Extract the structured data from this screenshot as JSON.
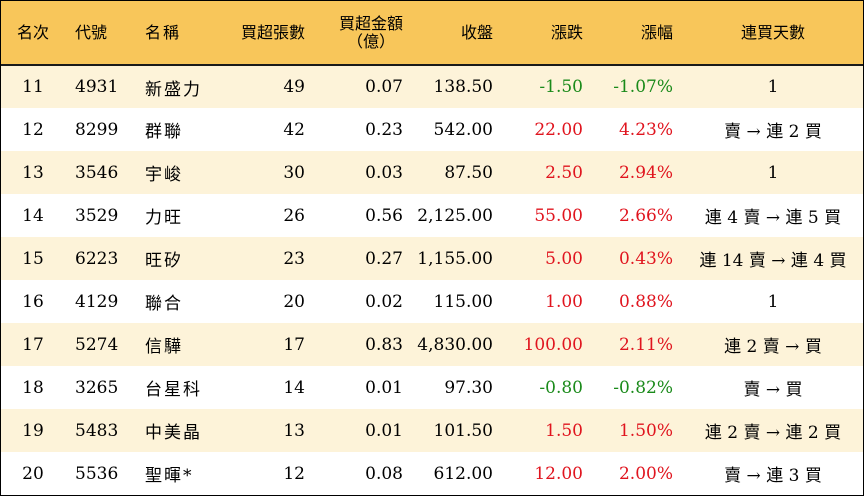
{
  "headers": {
    "rank": "名次",
    "code": "代號",
    "name": "名稱",
    "net_buy_lots": "買超張數",
    "net_buy_amount_line1": "買超金額",
    "net_buy_amount_line2": "（億）",
    "close": "收盤",
    "change": "漲跌",
    "change_pct": "漲幅",
    "consecutive_days": "連買天數"
  },
  "colors": {
    "header_bg": "#f8c65a",
    "odd_row_bg": "#fdf3d9",
    "even_row_bg": "#ffffff",
    "up": "#e0141e",
    "down": "#1a8a1a"
  },
  "rows": [
    {
      "rank": "11",
      "code": "4931",
      "name": "新盛力",
      "lots": "49",
      "amount": "0.07",
      "close": "138.50",
      "change": "-1.50",
      "pct": "-1.07%",
      "days": "1",
      "dir": "down"
    },
    {
      "rank": "12",
      "code": "8299",
      "name": "群聯",
      "lots": "42",
      "amount": "0.23",
      "close": "542.00",
      "change": "22.00",
      "pct": "4.23%",
      "days": "賣 → 連 2 買",
      "dir": "up"
    },
    {
      "rank": "13",
      "code": "3546",
      "name": "宇峻",
      "lots": "30",
      "amount": "0.03",
      "close": "87.50",
      "change": "2.50",
      "pct": "2.94%",
      "days": "1",
      "dir": "up"
    },
    {
      "rank": "14",
      "code": "3529",
      "name": "力旺",
      "lots": "26",
      "amount": "0.56",
      "close": "2,125.00",
      "change": "55.00",
      "pct": "2.66%",
      "days": "連 4 賣 → 連 5 買",
      "dir": "up"
    },
    {
      "rank": "15",
      "code": "6223",
      "name": "旺矽",
      "lots": "23",
      "amount": "0.27",
      "close": "1,155.00",
      "change": "5.00",
      "pct": "0.43%",
      "days": "連 14 賣 → 連 4 買",
      "dir": "up"
    },
    {
      "rank": "16",
      "code": "4129",
      "name": "聯合",
      "lots": "20",
      "amount": "0.02",
      "close": "115.00",
      "change": "1.00",
      "pct": "0.88%",
      "days": "1",
      "dir": "up"
    },
    {
      "rank": "17",
      "code": "5274",
      "name": "信驊",
      "lots": "17",
      "amount": "0.83",
      "close": "4,830.00",
      "change": "100.00",
      "pct": "2.11%",
      "days": "連 2 賣 → 買",
      "dir": "up"
    },
    {
      "rank": "18",
      "code": "3265",
      "name": "台星科",
      "lots": "14",
      "amount": "0.01",
      "close": "97.30",
      "change": "-0.80",
      "pct": "-0.82%",
      "days": "賣 → 買",
      "dir": "down"
    },
    {
      "rank": "19",
      "code": "5483",
      "name": "中美晶",
      "lots": "13",
      "amount": "0.01",
      "close": "101.50",
      "change": "1.50",
      "pct": "1.50%",
      "days": "連 2 賣 → 連 2 買",
      "dir": "up"
    },
    {
      "rank": "20",
      "code": "5536",
      "name": "聖暉*",
      "lots": "12",
      "amount": "0.08",
      "close": "612.00",
      "change": "12.00",
      "pct": "2.00%",
      "days": "賣 → 連 3 買",
      "dir": "up"
    }
  ]
}
